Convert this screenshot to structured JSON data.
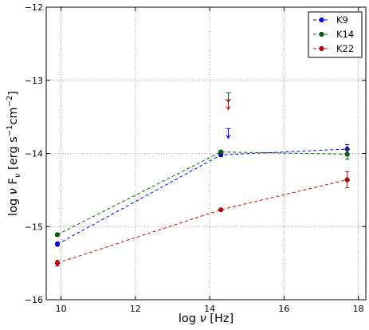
{
  "chart_data": {
    "type": "scatter",
    "xlabel_parts": {
      "prefix": "log ",
      "nu": "ν",
      "suffix": " [Hz]"
    },
    "ylabel_parts": {
      "prefix": "log ",
      "nu1": "ν",
      " F": " F",
      "nu2": "ν",
      "bracket": " [erg s",
      "exp1": "−1",
      "cm": "cm",
      "exp2": "−2",
      "close": "]"
    },
    "xlim": [
      9.6,
      18.2
    ],
    "ylim": [
      -16,
      -12
    ],
    "xticks": [
      10,
      12,
      14,
      16,
      18
    ],
    "yticks": [
      -16,
      -15,
      -14,
      -13,
      -12
    ],
    "xtick_labels": [
      "10",
      "12",
      "14",
      "16",
      "18"
    ],
    "ytick_labels": [
      "−16",
      "−15",
      "−14",
      "−13",
      "−12"
    ],
    "grid": true,
    "legend_position": "top-right",
    "series": [
      {
        "name": "K9",
        "color": "#0000ff",
        "line_x": [
          9.9,
          14.3,
          17.7
        ],
        "line_y": [
          -15.24,
          -14.02,
          -13.94
        ],
        "points": [
          {
            "x": 9.9,
            "y": -15.24,
            "err": 0.03
          },
          {
            "x": 14.3,
            "y": -14.02,
            "err": 0.02
          },
          {
            "x": 17.7,
            "y": -13.94,
            "err": 0.06
          }
        ],
        "upper_limits": [
          {
            "x": 14.5,
            "y": -13.66
          }
        ]
      },
      {
        "name": "K14",
        "color": "#006400",
        "line_x": [
          9.9,
          14.3,
          17.7
        ],
        "line_y": [
          -15.11,
          -13.98,
          -14.01
        ],
        "points": [
          {
            "x": 9.9,
            "y": -15.11,
            "err": 0.02
          },
          {
            "x": 14.3,
            "y": -13.98,
            "err": 0.02
          },
          {
            "x": 17.7,
            "y": -14.01,
            "err": 0.07
          }
        ],
        "upper_limits": [
          {
            "x": 14.5,
            "y": -13.17
          }
        ]
      },
      {
        "name": "K22",
        "color": "#cc0000",
        "line_x": [
          9.9,
          14.3,
          17.7
        ],
        "line_y": [
          -15.5,
          -14.77,
          -14.36
        ],
        "points": [
          {
            "x": 9.9,
            "y": -15.5,
            "err": 0.04
          },
          {
            "x": 14.3,
            "y": -14.77,
            "err": 0.01
          },
          {
            "x": 17.7,
            "y": -14.36,
            "err": 0.11
          }
        ],
        "upper_limits": [
          {
            "x": 14.5,
            "y": -13.27
          }
        ]
      }
    ]
  }
}
